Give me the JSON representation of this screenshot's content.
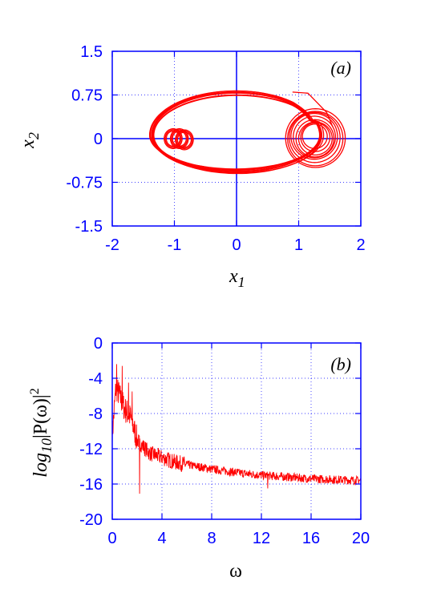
{
  "chart_data": [
    {
      "type": "line",
      "panel_label": "(a)",
      "xlabel": "x",
      "xlabel_sub": "1",
      "ylabel": "x",
      "ylabel_sub": "2",
      "xlim": [
        -2,
        2
      ],
      "ylim": [
        -1.5,
        1.5
      ],
      "xticks": [
        -2,
        -1,
        0,
        1,
        2
      ],
      "xtick_labels": [
        "-2",
        "-1",
        "0",
        "1",
        "2"
      ],
      "yticks": [
        -1.5,
        -0.75,
        0,
        0.75,
        1.5
      ],
      "ytick_labels": [
        "-1.5",
        "-0.75",
        "0",
        "0.75",
        "1.5"
      ],
      "grid": true,
      "zero_axes": true,
      "line_color": "#ff0000",
      "axis_color": "#0000ff",
      "trajectory": {
        "x_range": [
          -1.5,
          1.58
        ],
        "y_range": [
          -0.63,
          0.84
        ],
        "loops_near": [
          -1.0,
          -0.9
        ],
        "outer_orbit_center": [
          0.0,
          0.08
        ],
        "right_focus": [
          1.25,
          0.0
        ]
      }
    },
    {
      "type": "line",
      "panel_label": "(b)",
      "xlabel": "ω",
      "ylabel_main": "log",
      "ylabel_sub": "10",
      "ylabel_rest": "|P(ω)|",
      "ylabel_sup": "2",
      "xlim": [
        0,
        20
      ],
      "ylim": [
        -20,
        0
      ],
      "xticks": [
        0,
        4,
        8,
        12,
        16,
        20
      ],
      "xtick_labels": [
        "0",
        "4",
        "8",
        "12",
        "16",
        "20"
      ],
      "yticks": [
        0,
        -4,
        -8,
        -12,
        -16,
        -20
      ],
      "ytick_labels": [
        "0",
        "-4",
        "-8",
        "-12",
        "-16",
        "-20"
      ],
      "grid": true,
      "line_color": "#ff0000",
      "axis_color": "#0000ff",
      "spectrum_trend": {
        "omega": [
          0,
          0.3,
          0.6,
          1.0,
          1.5,
          2.0,
          3.0,
          4.0,
          5.0,
          6.0,
          8.0,
          10.0,
          12.0,
          14.0,
          16.0,
          18.0,
          20.0
        ],
        "log_power": [
          -10.5,
          -5.0,
          -6.0,
          -7.5,
          -8.5,
          -11.0,
          -12.5,
          -13.0,
          -13.5,
          -13.8,
          -14.3,
          -14.7,
          -15.0,
          -15.2,
          -15.4,
          -15.5,
          -15.6
        ]
      },
      "spectrum_peaks": {
        "omega": [
          0.35,
          0.8,
          1.3,
          1.6
        ],
        "log_power": [
          -2.4,
          -2.6,
          -4.5,
          -5.5
        ]
      },
      "spectrum_dips": {
        "omega": [
          2.2,
          12.5
        ],
        "log_power": [
          -17.1,
          -16.5
        ]
      }
    }
  ]
}
